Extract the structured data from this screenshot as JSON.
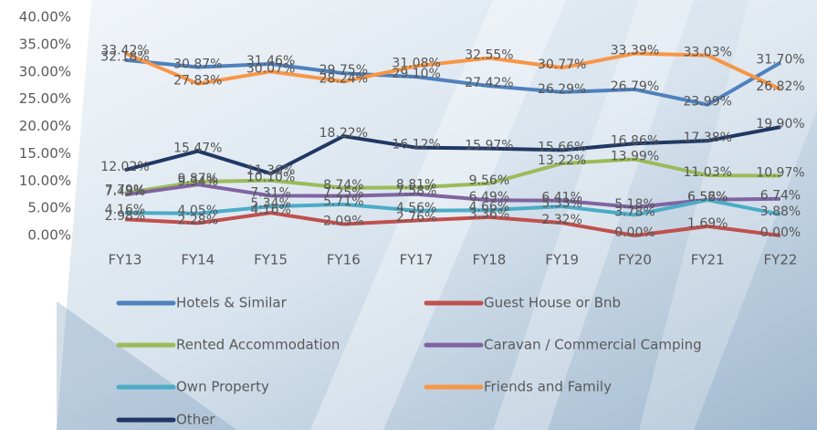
{
  "chart_data": {
    "type": "line",
    "categories": [
      "FY13",
      "FY14",
      "FY15",
      "FY16",
      "FY17",
      "FY18",
      "FY19",
      "FY20",
      "FY21",
      "FY22"
    ],
    "ylim": [
      0,
      40
    ],
    "yticks": [
      {
        "value": 0,
        "label": "0.00%"
      },
      {
        "value": 5,
        "label": "5.00%"
      },
      {
        "value": 10,
        "label": "10.00%"
      },
      {
        "value": 15,
        "label": "15.00%"
      },
      {
        "value": 20,
        "label": "20.00%"
      },
      {
        "value": 25,
        "label": "25.00%"
      },
      {
        "value": 30,
        "label": "30.00%"
      },
      {
        "value": 35,
        "label": "35.00%"
      },
      {
        "value": 40,
        "label": "40.00%"
      }
    ],
    "series": [
      {
        "name": "Hotels & Similar",
        "color": "#4f81bd",
        "values": [
          32.18,
          30.87,
          31.46,
          29.75,
          29.1,
          27.42,
          26.29,
          26.79,
          23.99,
          31.7
        ],
        "value_labels": [
          "32.18%",
          "30.87%",
          "31.46%",
          "29.75%",
          "29.10%",
          "27.42%",
          "26.29%",
          "26.79%",
          "23.99%",
          "31.70%"
        ]
      },
      {
        "name": "Guest House or Bnb",
        "color": "#c0504d",
        "values": [
          2.98,
          2.28,
          4.16,
          2.09,
          2.76,
          3.36,
          2.32,
          0.0,
          1.69,
          0.0
        ],
        "value_labels": [
          "2.98%",
          "2.28%",
          "4.16%",
          "2.09%",
          "2.76%",
          "3.36%",
          "2.32%",
          "0.00%",
          "1.69%",
          "0.00%"
        ]
      },
      {
        "name": "Rented Accommodation",
        "color": "#9bbb59",
        "values": [
          7.79,
          9.87,
          10.1,
          8.74,
          8.81,
          9.56,
          13.22,
          13.99,
          11.03,
          10.97
        ],
        "value_labels": [
          "7.79%",
          "9.87%",
          "10.10%",
          "8.74%",
          "8.81%",
          "9.56%",
          "13.22%",
          "13.99%",
          "11.03%",
          "10.97%"
        ]
      },
      {
        "name": "Caravan / Commercial Camping",
        "color": "#8064a2",
        "values": [
          7.49,
          9.34,
          7.31,
          7.25,
          7.58,
          6.49,
          6.41,
          5.18,
          6.56,
          6.74
        ],
        "value_labels": [
          "7.49%",
          "9.34%",
          "7.31%",
          "7.25%",
          "7.58%",
          "6.49%",
          "6.41%",
          "5.18%",
          "6.56%",
          "6.74%"
        ]
      },
      {
        "name": "Own Property",
        "color": "#4bacc6",
        "values": [
          4.16,
          4.05,
          5.34,
          5.71,
          4.56,
          4.66,
          5.33,
          3.78,
          6.52,
          3.88
        ],
        "value_labels": [
          "4.16%",
          "4.05%",
          "5.34%",
          "5.71%",
          "4.56%",
          "4.66%",
          "5.33%",
          "3.78%",
          "6.52%",
          "3.88%"
        ]
      },
      {
        "name": "Friends and Family",
        "color": "#f79646",
        "values": [
          33.42,
          27.83,
          30.07,
          28.24,
          31.08,
          32.55,
          30.77,
          33.39,
          33.03,
          26.82
        ],
        "value_labels": [
          "33.42%",
          "27.83%",
          "30.07%",
          "28.24%",
          "31.08%",
          "32.55%",
          "30.77%",
          "33.39%",
          "33.03%",
          "26.82%"
        ]
      },
      {
        "name": "Other",
        "color": "#1f3864",
        "values": [
          12.02,
          15.47,
          11.36,
          18.22,
          16.12,
          15.97,
          15.66,
          16.86,
          17.38,
          19.9
        ],
        "value_labels": [
          "12.02%",
          "15.47%",
          "11.36%",
          "18.22%",
          "16.12%",
          "15.97%",
          "15.66%",
          "16.86%",
          "17.38%",
          "19.90%"
        ]
      }
    ]
  }
}
